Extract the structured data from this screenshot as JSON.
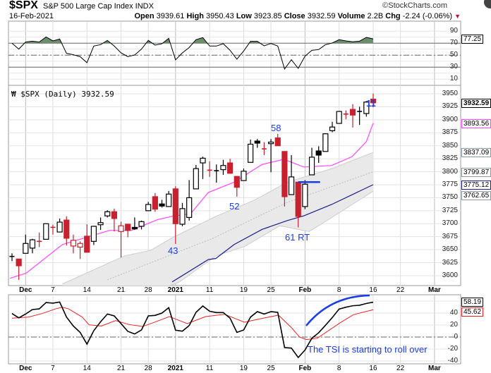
{
  "header": {
    "symbol": "$SPX",
    "name": "S&P 500 Large Cap Index",
    "exchange": "INDX",
    "copyright": "©StockCharts.com",
    "date": "16-Feb-2021",
    "open_label": "Open",
    "open": "3939.61",
    "high_label": "High",
    "high": "3950.43",
    "low_label": "Low",
    "low": "3923.85",
    "close_label": "Close",
    "close": "3932.59",
    "volume_label": "Volume",
    "volume": "2.2B",
    "chg_label": "Chg",
    "chg": "-2.24 (-0.06%)",
    "chg_icon": "down-triangle-icon"
  },
  "price_label": "$SPX (Daily) 3932.59",
  "colors": {
    "up": "#000000",
    "down": "#c8202e",
    "ma_short": "#ff44ff",
    "ma_long": "#1c1c8c",
    "band": "#e9e9e9",
    "rsi_fill": "#6b8e6b",
    "tsi": "#000000",
    "signal": "#ee2222",
    "annotation": "#1a3de6"
  },
  "annotations": {
    "a43": "43",
    "a52": "52",
    "a58": "58",
    "a61": "61 RT",
    "a11": "11",
    "tsi_note": "The TSI is starting to roll over"
  },
  "chart_data": [
    {
      "type": "line",
      "title": "RSI",
      "ylim": [
        0,
        100
      ],
      "ticks": [
        "90",
        "70",
        "50",
        "30",
        "10"
      ],
      "levels": [
        70,
        50,
        30
      ],
      "last_value": "77.25",
      "values": [
        70,
        60.2,
        72,
        73.5,
        72,
        80.6,
        73.9,
        77,
        53.1,
        50.8,
        47.6,
        37.5,
        65.3,
        67.6,
        74.7,
        65.3,
        53.9,
        47.6,
        50.4,
        60.2,
        74.7,
        66.9,
        69.2,
        78.2,
        42.2,
        53.9,
        62.9,
        75.9,
        79.4,
        65.3,
        65.3,
        69.2,
        58.2,
        43.3,
        57.1,
        73.1,
        73.1,
        65.7,
        69.6,
        65.3,
        26.9,
        42.5,
        28,
        48.4,
        58.2,
        59.4,
        67.6,
        70.4,
        75.9,
        73.9,
        72.4,
        73.5,
        79.8,
        77.25
      ]
    },
    {
      "type": "candlestick",
      "title": "$SPX (Daily) 3932.59",
      "ylim": [
        3581,
        3966
      ],
      "ticks": [
        "3950",
        "3925",
        "3900",
        "3875",
        "3850",
        "3825",
        "3800",
        "3775",
        "3750",
        "3725",
        "3700",
        "3675",
        "3650",
        "3625",
        "3600"
      ],
      "date_labels": [
        {
          "t": "Dec",
          "i": 2,
          "bold": true
        },
        {
          "t": "7",
          "i": 6
        },
        {
          "t": "14",
          "i": 11
        },
        {
          "t": "21",
          "i": 16
        },
        {
          "t": "28",
          "i": 20
        },
        {
          "t": "2021",
          "i": 24,
          "bold": true
        },
        {
          "t": "11",
          "i": 29
        },
        {
          "t": "19",
          "i": 34
        },
        {
          "t": "25",
          "i": 38
        },
        {
          "t": "Feb",
          "i": 43,
          "bold": true
        },
        {
          "t": "8",
          "i": 48
        },
        {
          "t": "16",
          "i": 53
        },
        {
          "t": "22",
          "i": 57
        },
        {
          "t": "Mar",
          "i": 62,
          "bold": true
        }
      ],
      "candles": [
        [
          3637,
          3643,
          3628,
          3637,
          "k"
        ],
        [
          3632,
          3632,
          3592,
          3619,
          "r"
        ],
        [
          3643,
          3679,
          3643,
          3662,
          "k"
        ],
        [
          3653,
          3671,
          3643,
          3669,
          "k"
        ],
        [
          3666,
          3683,
          3655,
          3666,
          "r"
        ],
        [
          3670,
          3700,
          3670,
          3700,
          "k"
        ],
        [
          3693,
          3698,
          3679,
          3693,
          "r"
        ],
        [
          3684,
          3710,
          3684,
          3703,
          "k"
        ],
        [
          3707,
          3714,
          3658,
          3672,
          "r"
        ],
        [
          3657,
          3679,
          3643,
          3668,
          "r"
        ],
        [
          3655,
          3666,
          3632,
          3662,
          "r"
        ],
        [
          3676,
          3699,
          3645,
          3645,
          "r"
        ],
        [
          3666,
          3696,
          3659,
          3695,
          "k"
        ],
        [
          3698,
          3712,
          3688,
          3702,
          "k"
        ],
        [
          3715,
          3726,
          3712,
          3723,
          "k"
        ],
        [
          3723,
          3729,
          3685,
          3710,
          "r"
        ],
        [
          3685,
          3704,
          3635,
          3696,
          "r"
        ],
        [
          3699,
          3699,
          3674,
          3687,
          "r"
        ],
        [
          3693,
          3712,
          3688,
          3690,
          "k"
        ],
        [
          3695,
          3706,
          3689,
          3704,
          "k"
        ],
        [
          3725,
          3742,
          3725,
          3737,
          "k"
        ],
        [
          3752,
          3759,
          3723,
          3728,
          "r"
        ],
        [
          3738,
          3746,
          3731,
          3734,
          "k"
        ],
        [
          3733,
          3763,
          3733,
          3757,
          "k"
        ],
        [
          3767,
          3772,
          3661,
          3700,
          "r"
        ],
        [
          3699,
          3740,
          3695,
          3729,
          "k"
        ],
        [
          3712,
          3784,
          3706,
          3750,
          "k"
        ],
        [
          3767,
          3813,
          3767,
          3806,
          "k"
        ],
        [
          3817,
          3829,
          3786,
          3826,
          "k"
        ],
        [
          3803,
          3820,
          3790,
          3803,
          "r"
        ],
        [
          3802,
          3814,
          3779,
          3802,
          "k"
        ],
        [
          3804,
          3823,
          3794,
          3812,
          "k"
        ],
        [
          3817,
          3825,
          3797,
          3797,
          "r"
        ],
        [
          3791,
          3791,
          3752,
          3770,
          "r"
        ],
        [
          3783,
          3806,
          3783,
          3801,
          "k"
        ],
        [
          3818,
          3862,
          3818,
          3853,
          "k"
        ],
        [
          3859,
          3863,
          3846,
          3855,
          "k"
        ],
        [
          3844,
          3857,
          3832,
          3844,
          "r"
        ],
        [
          3854,
          3863,
          3799,
          3857,
          "k"
        ],
        [
          3865,
          3873,
          3850,
          3850,
          "r"
        ],
        [
          3839,
          3839,
          3733,
          3752,
          "r"
        ],
        [
          3756,
          3832,
          3756,
          3790,
          "k"
        ],
        [
          3780,
          3780,
          3693,
          3714,
          "r"
        ],
        [
          3733,
          3784,
          3728,
          3776,
          "k"
        ],
        [
          3794,
          3846,
          3794,
          3828,
          "k"
        ],
        [
          3840,
          3849,
          3817,
          3832,
          "k"
        ],
        [
          3839,
          3874,
          3839,
          3873,
          "k"
        ],
        [
          3879,
          3896,
          3876,
          3886,
          "k"
        ],
        [
          3893,
          3917,
          3893,
          3916,
          "k"
        ],
        [
          3911,
          3918,
          3901,
          3911,
          "r"
        ],
        [
          3920,
          3930,
          3885,
          3909,
          "r"
        ],
        [
          3916,
          3925,
          3890,
          3916,
          "k"
        ],
        [
          3912,
          3936,
          3906,
          3934,
          "k"
        ],
        [
          3939.61,
          3950.43,
          3923.85,
          3932.59,
          "r"
        ]
      ],
      "ma_short": [
        [
          -0.3,
          3595
        ],
        [
          2.1,
          3605
        ],
        [
          7.4,
          3660
        ],
        [
          14.3,
          3687
        ],
        [
          17.5,
          3687
        ],
        [
          21.4,
          3708
        ],
        [
          23.8,
          3715
        ],
        [
          26.2,
          3719
        ],
        [
          28.8,
          3760
        ],
        [
          32.6,
          3780
        ],
        [
          36.7,
          3814
        ],
        [
          39.9,
          3824
        ],
        [
          42.8,
          3809
        ],
        [
          46.9,
          3812
        ],
        [
          49.9,
          3829
        ],
        [
          52,
          3858
        ],
        [
          53,
          3893.56
        ]
      ],
      "ma_long": [
        [
          23.5,
          3588
        ],
        [
          28.8,
          3631
        ],
        [
          29.9,
          3633
        ],
        [
          32.6,
          3660
        ],
        [
          36.7,
          3689
        ],
        [
          40.4,
          3706
        ],
        [
          42.8,
          3715
        ],
        [
          46.9,
          3737
        ],
        [
          53,
          3775.12
        ]
      ],
      "band_upper": [
        [
          7.4,
          3584
        ],
        [
          16.5,
          3638
        ],
        [
          20.4,
          3649
        ],
        [
          23.5,
          3673
        ],
        [
          29.9,
          3714
        ],
        [
          35.7,
          3746
        ],
        [
          40.4,
          3780
        ],
        [
          46.7,
          3805
        ],
        [
          53,
          3837.09
        ]
      ],
      "band_middle": [
        [
          14,
          3592
        ],
        [
          29.5,
          3672
        ],
        [
          40.4,
          3741
        ],
        [
          53,
          3799.87
        ]
      ],
      "band_lower": [
        [
          7.4,
          3500
        ],
        [
          24.6,
          3588
        ],
        [
          29.9,
          3638
        ],
        [
          34.1,
          3656
        ],
        [
          39.3,
          3696
        ],
        [
          43.6,
          3685
        ],
        [
          46.7,
          3710
        ],
        [
          53,
          3762.65
        ]
      ],
      "last_labels": [
        {
          "v": 3932.59,
          "t": "3932.59",
          "c": "#000000",
          "bold": true
        },
        {
          "v": 3893.56,
          "t": "3893.56",
          "c": "#ff44ff"
        },
        {
          "v": 3837.09,
          "t": "3837.09",
          "c": "#8a9aa0"
        },
        {
          "v": 3799.87,
          "t": "3799.87",
          "c": "#8a9aa0"
        },
        {
          "v": 3775.12,
          "t": "3775.12",
          "c": "#1c1c8c"
        },
        {
          "v": 3762.65,
          "t": "3762.65",
          "c": "#8a9aa0"
        }
      ],
      "support_line": {
        "price": 3780,
        "from_i": 42,
        "to_i": 45
      }
    },
    {
      "type": "line",
      "title": "TSI",
      "ylim": [
        -45,
        72
      ],
      "ticks": [
        "40",
        "20",
        "0",
        "-20",
        "-40"
      ],
      "tsi_last": "58.19",
      "signal_last": "45.62",
      "tsi": [
        39.2,
        32,
        38.4,
        45.9,
        47,
        57.6,
        56.5,
        58.4,
        33.3,
        18.4,
        7.8,
        -11.8,
        10.6,
        25.5,
        38.4,
        35.3,
        22.4,
        9.4,
        5.1,
        11.8,
        35.3,
        36.1,
        40,
        49,
        11.4,
        9.8,
        19.2,
        41.2,
        51.8,
        43.1,
        40.8,
        40.8,
        31.4,
        7.8,
        11.8,
        33.3,
        42.4,
        38.4,
        42.4,
        41.2,
        -17.6,
        -18.4,
        -34.1,
        -21.6,
        -2,
        7.1,
        19.6,
        32.5,
        46.7,
        49.8,
        52.2,
        53,
        56,
        58.19
      ],
      "signal": [
        [
          0,
          31.4
        ],
        [
          2.4,
          33.3
        ],
        [
          4.4,
          39.2
        ],
        [
          6.4,
          47
        ],
        [
          7.4,
          49.8
        ],
        [
          8.3,
          47
        ],
        [
          10.3,
          33.3
        ],
        [
          11.3,
          20.4
        ],
        [
          13.1,
          18.4
        ],
        [
          15.2,
          27.5
        ],
        [
          17.2,
          20.8
        ],
        [
          19.2,
          17.6
        ],
        [
          21.1,
          25.5
        ],
        [
          23.1,
          34.1
        ],
        [
          25.7,
          22.4
        ],
        [
          28.4,
          34.1
        ],
        [
          31.2,
          38
        ],
        [
          34.1,
          24.7
        ],
        [
          36.3,
          30.2
        ],
        [
          39.1,
          36.5
        ],
        [
          41,
          15.7
        ],
        [
          42.2,
          0
        ],
        [
          43.2,
          -4.3
        ],
        [
          44.8,
          -2
        ],
        [
          48.1,
          23.5
        ],
        [
          50.1,
          37.3
        ],
        [
          53,
          45.62
        ]
      ]
    }
  ]
}
